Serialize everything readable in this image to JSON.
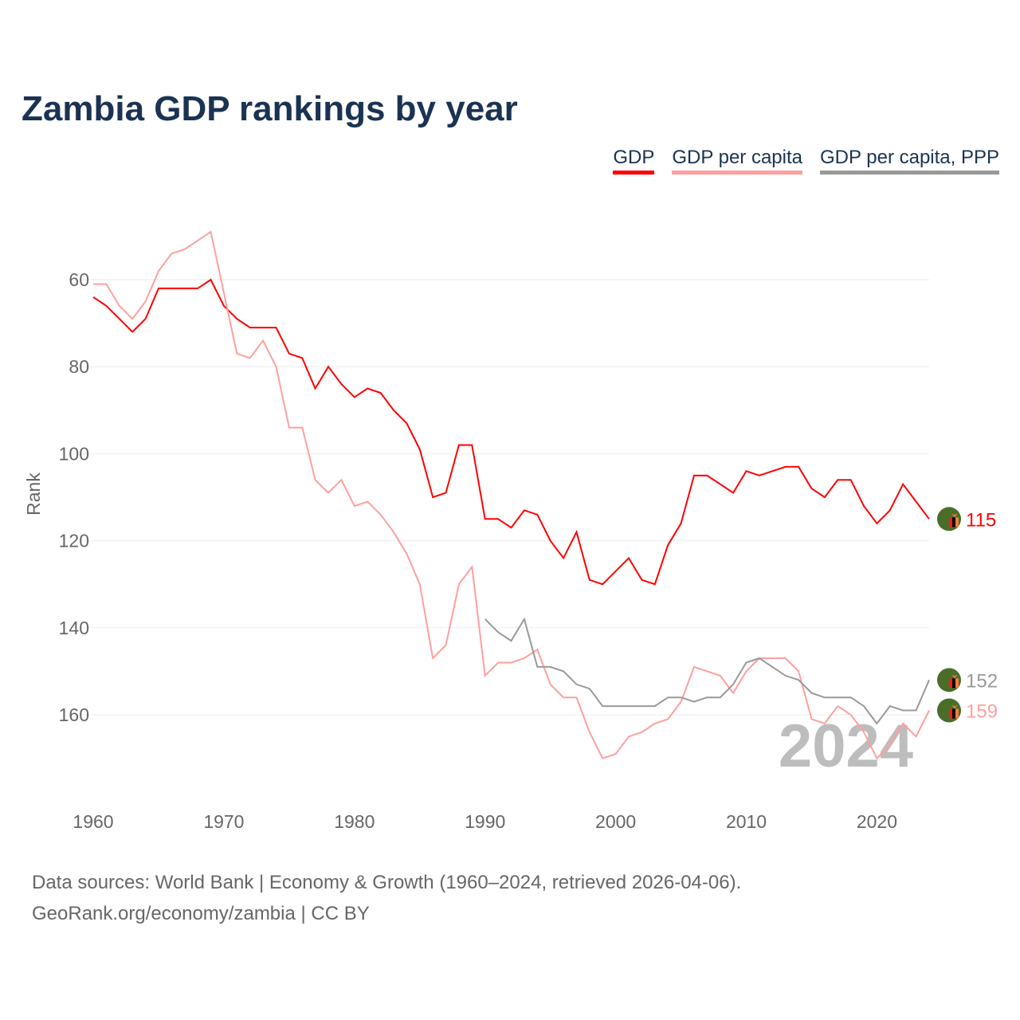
{
  "title": "Zambia GDP rankings by year",
  "legend": [
    {
      "label": "GDP",
      "color": "#ff0000"
    },
    {
      "label": "GDP per capita",
      "color": "#ff9f9f"
    },
    {
      "label": "GDP per capita, PPP",
      "color": "#999999"
    }
  ],
  "year_watermark": "2024",
  "source_line1": "Data sources: World Bank | Economy & Growth (1960–2024, retrieved 2026-04-06).",
  "source_line2": "GeoRank.org/economy/zambia | CC BY",
  "chart_data": {
    "type": "line",
    "title": "Zambia GDP rankings by year",
    "xlabel": "",
    "ylabel": "Rank",
    "xlim": [
      1960,
      2024
    ],
    "ylim": [
      49,
      175
    ],
    "y_inverted": true,
    "xticks": [
      1960,
      1970,
      1980,
      1990,
      2000,
      2010,
      2020
    ],
    "yticks": [
      60,
      80,
      100,
      120,
      140,
      160
    ],
    "grid": true,
    "legend_position": "top-right",
    "series": [
      {
        "name": "GDP",
        "color": "#ff0000",
        "start": 1960,
        "end_label": "115",
        "values": [
          64,
          66,
          69,
          72,
          69,
          62,
          62,
          62,
          62,
          60,
          66,
          69,
          71,
          71,
          71,
          77,
          78,
          85,
          80,
          84,
          87,
          85,
          86,
          90,
          93,
          99,
          110,
          109,
          98,
          98,
          115,
          115,
          117,
          113,
          114,
          120,
          124,
          118,
          129,
          130,
          127,
          124,
          129,
          130,
          121,
          116,
          105,
          105,
          107,
          109,
          104,
          105,
          104,
          103,
          103,
          108,
          110,
          106,
          106,
          112,
          116,
          113,
          107,
          111,
          115
        ]
      },
      {
        "name": "GDP per capita",
        "color": "#ff9f9f",
        "start": 1960,
        "end_label": "159",
        "values": [
          61,
          61,
          66,
          69,
          65,
          58,
          54,
          53,
          51,
          49,
          63,
          77,
          78,
          74,
          80,
          94,
          94,
          106,
          109,
          106,
          112,
          111,
          114,
          118,
          123,
          130,
          147,
          144,
          130,
          126,
          151,
          148,
          148,
          147,
          145,
          153,
          156,
          156,
          164,
          170,
          169,
          165,
          164,
          162,
          161,
          157,
          149,
          150,
          151,
          155,
          150,
          147,
          147,
          147,
          150,
          161,
          162,
          158,
          160,
          164,
          170,
          167,
          162,
          165,
          159
        ]
      },
      {
        "name": "GDP per capita, PPP",
        "color": "#999999",
        "start": 1990,
        "end_label": "152",
        "values": [
          138,
          141,
          143,
          138,
          149,
          149,
          150,
          153,
          154,
          158,
          158,
          158,
          158,
          158,
          156,
          156,
          157,
          156,
          156,
          153,
          148,
          147,
          149,
          151,
          152,
          155,
          156,
          156,
          156,
          158,
          162,
          158,
          159,
          159,
          152
        ]
      }
    ]
  }
}
